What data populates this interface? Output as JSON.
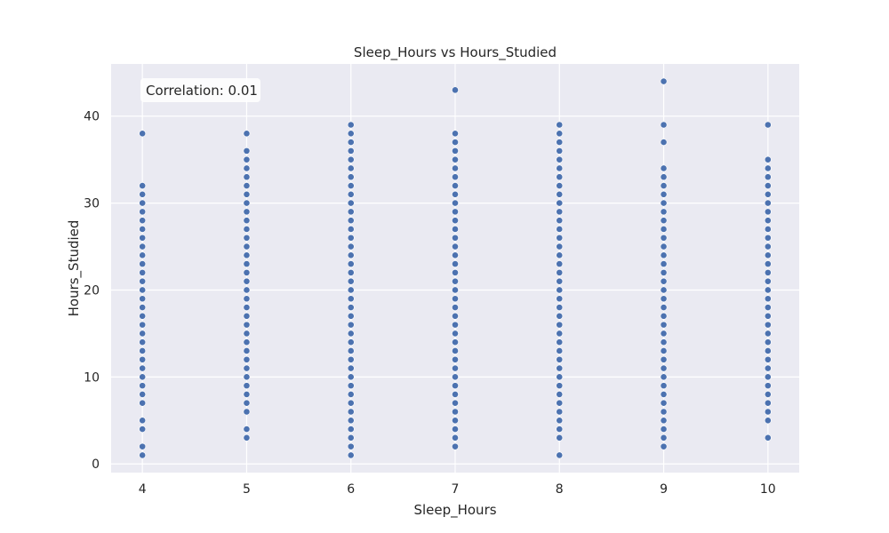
{
  "chart_data": {
    "type": "scatter",
    "title": "Sleep_Hours vs Hours_Studied",
    "xlabel": "Sleep_Hours",
    "ylabel": "Hours_Studied",
    "xlim": [
      3.7,
      10.3
    ],
    "ylim": [
      -1,
      46
    ],
    "x_ticks": [
      4,
      5,
      6,
      7,
      8,
      9,
      10
    ],
    "y_ticks": [
      0,
      10,
      20,
      30,
      40
    ],
    "grid": true,
    "annotation": "Correlation: 0.01",
    "annotation_placement": "top-left",
    "colors": {
      "background": "#eaeaf2",
      "grid": "#ffffff",
      "point": "#4c72b0",
      "text": "#262626"
    },
    "groups": [
      {
        "x": 4,
        "y": [
          1,
          2,
          4,
          5,
          7,
          8,
          9,
          10,
          11,
          12,
          13,
          14,
          15,
          16,
          17,
          18,
          19,
          20,
          21,
          22,
          23,
          24,
          25,
          26,
          27,
          28,
          29,
          30,
          31,
          32,
          38
        ]
      },
      {
        "x": 5,
        "y": [
          3,
          4,
          6,
          7,
          8,
          9,
          10,
          11,
          12,
          13,
          14,
          15,
          16,
          17,
          18,
          19,
          20,
          21,
          22,
          23,
          24,
          25,
          26,
          27,
          28,
          29,
          30,
          31,
          32,
          33,
          34,
          35,
          36,
          38
        ]
      },
      {
        "x": 6,
        "y": [
          1,
          2,
          3,
          4,
          5,
          6,
          7,
          8,
          9,
          10,
          11,
          12,
          13,
          14,
          15,
          16,
          17,
          18,
          19,
          20,
          21,
          22,
          23,
          24,
          25,
          26,
          27,
          28,
          29,
          30,
          31,
          32,
          33,
          34,
          35,
          36,
          37,
          38,
          39
        ]
      },
      {
        "x": 7,
        "y": [
          2,
          3,
          4,
          5,
          6,
          7,
          8,
          9,
          10,
          11,
          12,
          13,
          14,
          15,
          16,
          17,
          18,
          19,
          20,
          21,
          22,
          23,
          24,
          25,
          26,
          27,
          28,
          29,
          30,
          31,
          32,
          33,
          34,
          35,
          36,
          37,
          38,
          43
        ]
      },
      {
        "x": 8,
        "y": [
          1,
          3,
          4,
          5,
          6,
          7,
          8,
          9,
          10,
          11,
          12,
          13,
          14,
          15,
          16,
          17,
          18,
          19,
          20,
          21,
          22,
          23,
          24,
          25,
          26,
          27,
          28,
          29,
          30,
          31,
          32,
          33,
          34,
          35,
          36,
          37,
          38,
          39
        ]
      },
      {
        "x": 9,
        "y": [
          2,
          3,
          4,
          5,
          6,
          7,
          8,
          9,
          10,
          11,
          12,
          13,
          14,
          15,
          16,
          17,
          18,
          19,
          20,
          21,
          22,
          23,
          24,
          25,
          26,
          27,
          28,
          29,
          30,
          31,
          32,
          33,
          34,
          37,
          39,
          44
        ]
      },
      {
        "x": 10,
        "y": [
          3,
          5,
          6,
          7,
          8,
          9,
          10,
          11,
          12,
          13,
          14,
          15,
          16,
          17,
          18,
          19,
          20,
          21,
          22,
          23,
          24,
          25,
          26,
          27,
          28,
          29,
          30,
          31,
          32,
          33,
          34,
          35,
          39
        ]
      }
    ]
  }
}
